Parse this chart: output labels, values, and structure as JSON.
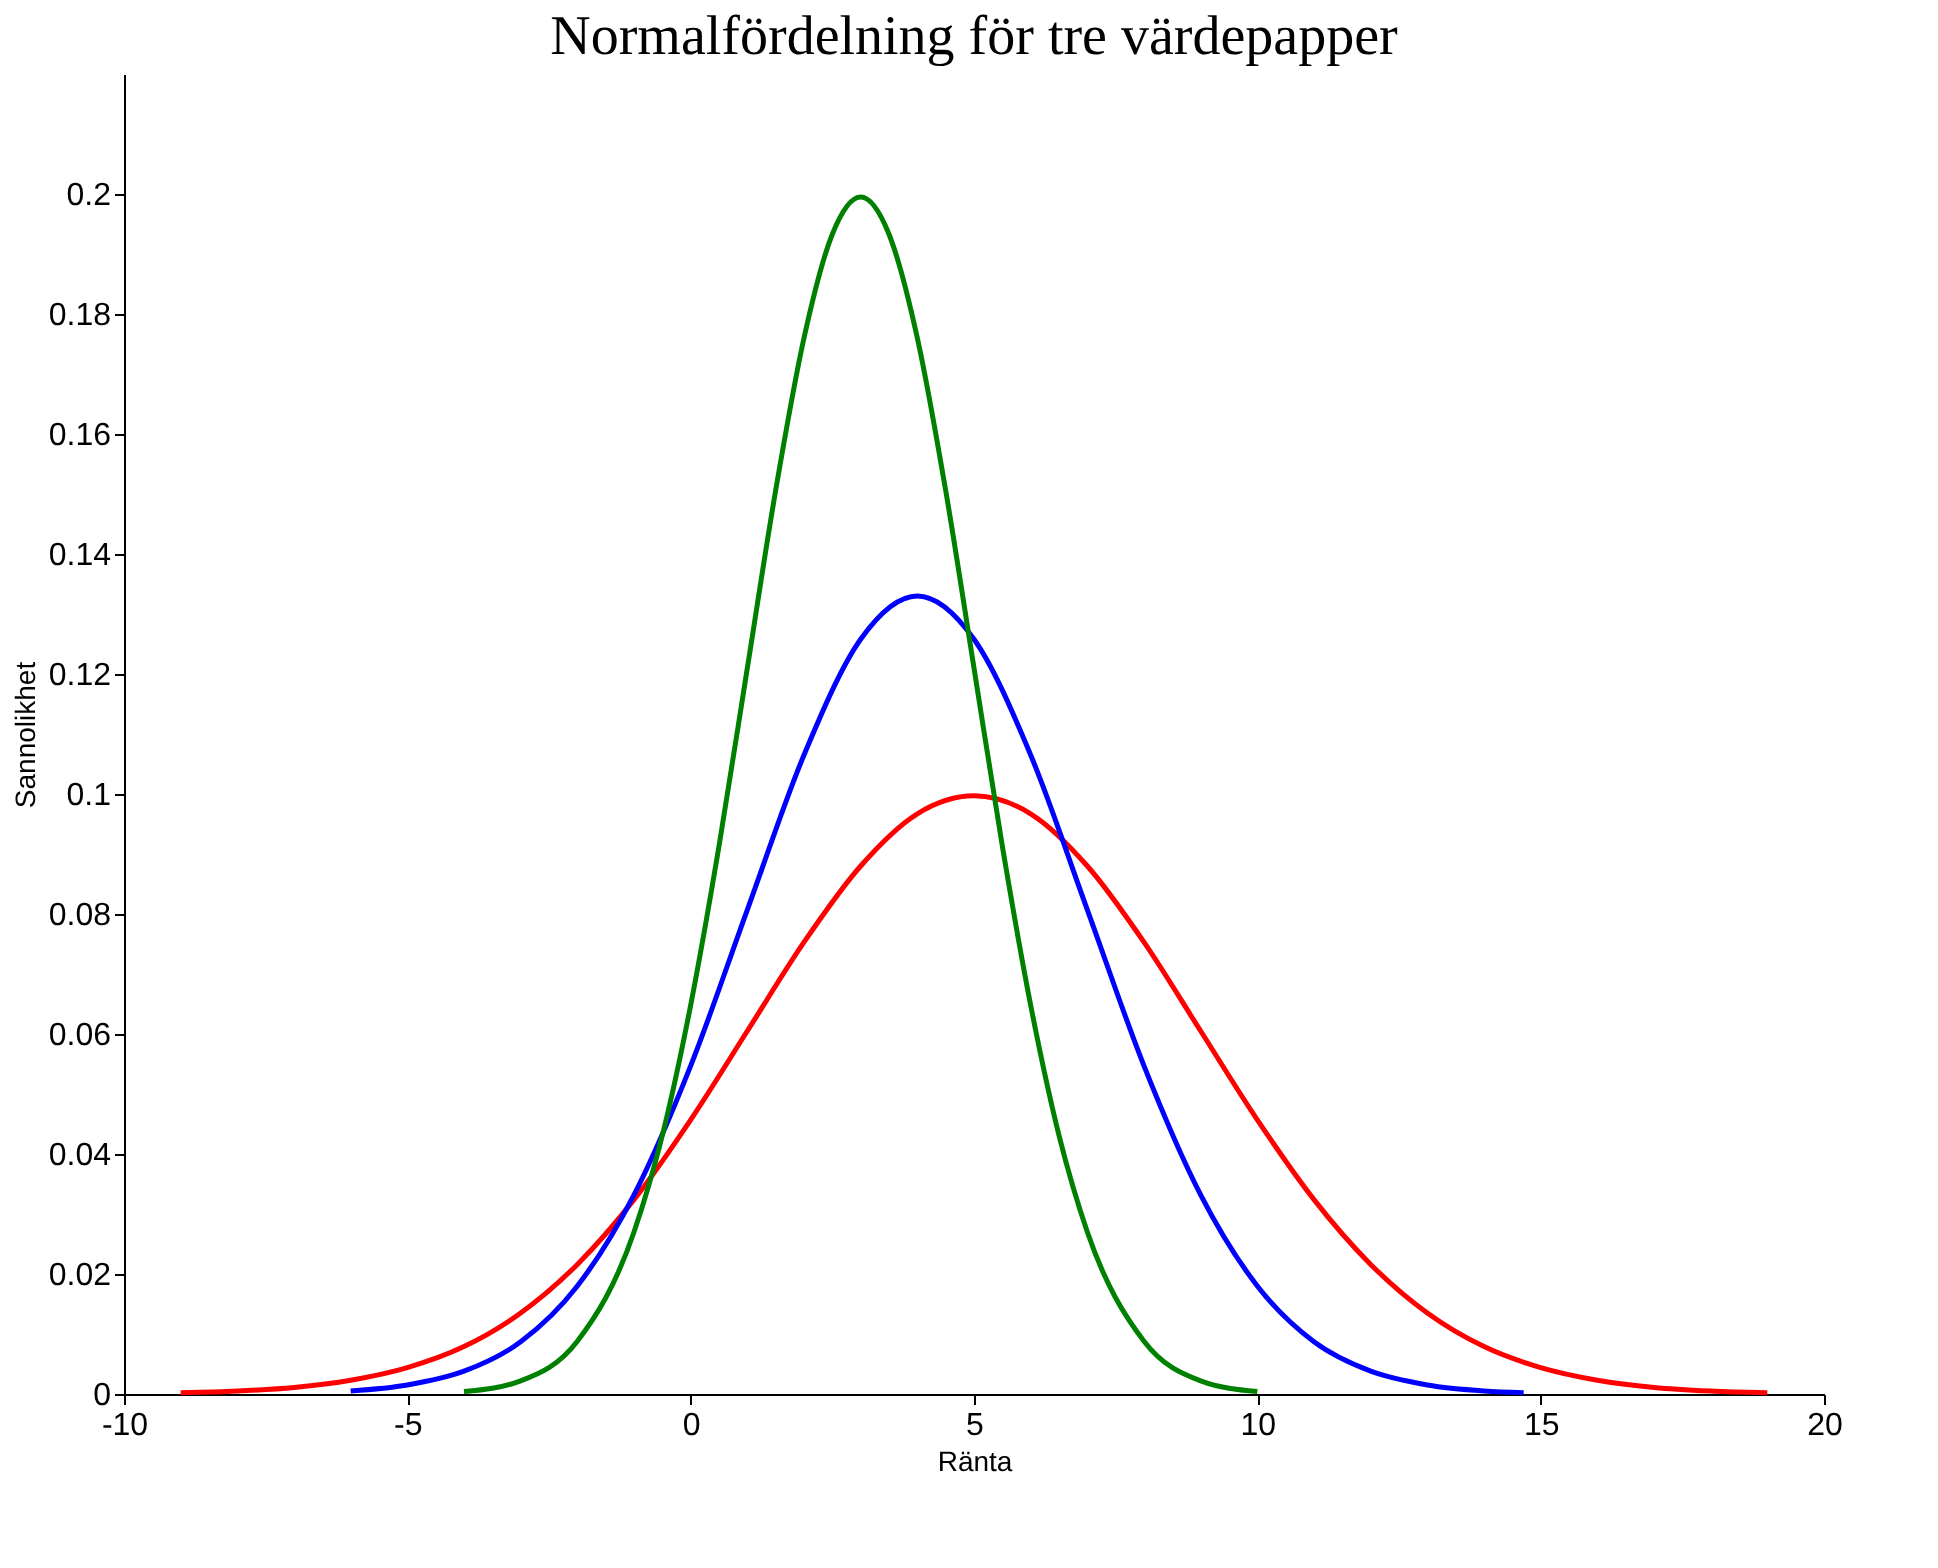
{
  "chart_data": {
    "type": "line",
    "title": "Normalfördelning för tre värdepapper",
    "xlabel": "Ränta",
    "ylabel": "Sannolikhet",
    "xlim": [
      -10,
      20
    ],
    "xticks": [
      -10,
      -5,
      0,
      5,
      10,
      15,
      20
    ],
    "ylim": [
      0,
      0.22
    ],
    "yticks": [
      0,
      0.02,
      0.04,
      0.06,
      0.08,
      0.1,
      0.12,
      0.14,
      0.16,
      0.18,
      0.2
    ],
    "line_style": "solid",
    "marker": "none",
    "series": [
      {
        "color": "#ff0000",
        "x": [
          -9,
          -8,
          -7,
          -6,
          -5,
          -4,
          -3,
          -2,
          -1,
          0,
          1,
          2,
          3,
          4,
          5,
          6,
          7,
          8,
          9,
          10,
          11,
          12,
          13,
          14,
          15,
          16,
          17,
          18,
          19
        ],
        "values": [
          0.0002,
          0.0005,
          0.0011,
          0.0023,
          0.0044,
          0.0079,
          0.0135,
          0.0216,
          0.0324,
          0.0457,
          0.0605,
          0.0753,
          0.088,
          0.0967,
          0.0997,
          0.0967,
          0.088,
          0.0753,
          0.0605,
          0.0457,
          0.0324,
          0.0216,
          0.0135,
          0.0079,
          0.0044,
          0.0023,
          0.0011,
          0.0005,
          0.0002
        ]
      },
      {
        "color": "#0000ff",
        "x": [
          -6,
          -5,
          -4,
          -3,
          -2,
          -1,
          0,
          1,
          2,
          3,
          4,
          5,
          6,
          7,
          8,
          9,
          10,
          11,
          12,
          13,
          14,
          14.7
        ],
        "values": [
          0.0005,
          0.0015,
          0.0038,
          0.0087,
          0.018,
          0.0332,
          0.0547,
          0.0807,
          0.1065,
          0.1258,
          0.133,
          0.1258,
          0.1065,
          0.0807,
          0.0547,
          0.0332,
          0.018,
          0.0087,
          0.0038,
          0.0015,
          0.0005,
          0.0002
        ]
      },
      {
        "color": "#008000",
        "x": [
          -4,
          -3,
          -2,
          -1,
          -0.5,
          0,
          0.5,
          1,
          1.5,
          2,
          2.5,
          3,
          3.5,
          4,
          4.5,
          5,
          5.5,
          6,
          6.5,
          7,
          8,
          9,
          10
        ],
        "values": [
          0.0004,
          0.0022,
          0.0088,
          0.027,
          0.0431,
          0.0648,
          0.0913,
          0.121,
          0.1506,
          0.176,
          0.1933,
          0.1995,
          0.1933,
          0.176,
          0.1506,
          0.121,
          0.0913,
          0.0648,
          0.0431,
          0.027,
          0.0088,
          0.0022,
          0.0004
        ]
      }
    ]
  }
}
